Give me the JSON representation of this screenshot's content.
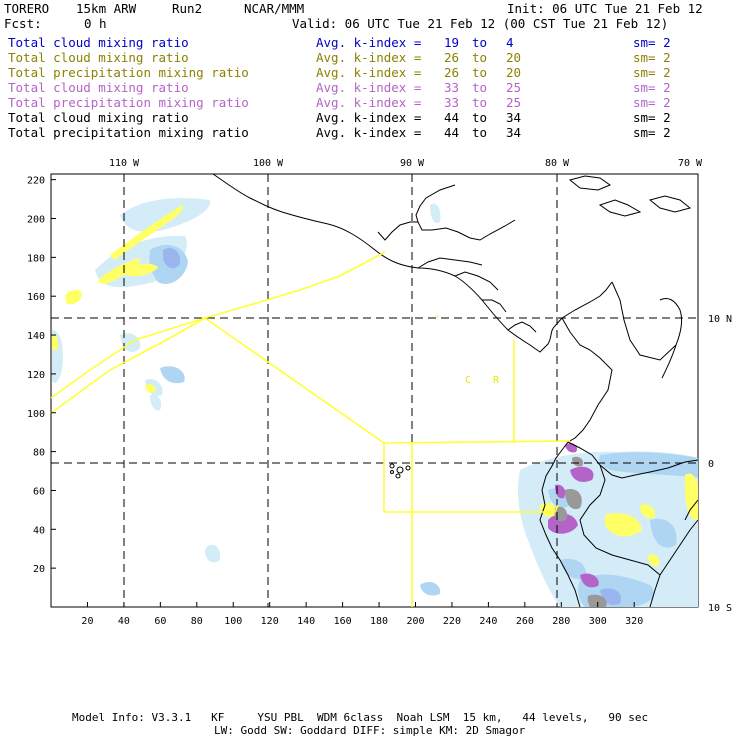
{
  "header": {
    "model": "TORERO",
    "resolution": "15km ARW",
    "run": "Run2",
    "org": "NCAR/MMM",
    "init": "Init: 06 UTC Tue 21 Feb 12",
    "fcst_label": "Fcst:",
    "fcst_value": "0 h",
    "valid": "Valid: 06 UTC Tue 21 Feb 12 (00 CST Tue 21 Feb 12)"
  },
  "legend": [
    {
      "field": "Total cloud mixing ratio",
      "index": "Avg. k-index =",
      "from": "19",
      "to_word": "to",
      "to": "4",
      "sm": "sm= 2",
      "color": "#0000c8"
    },
    {
      "field": "Total cloud mixing ratio",
      "index": "Avg. k-index =",
      "from": "26",
      "to_word": "to",
      "to": "20",
      "sm": "sm= 2",
      "color": "#8c8200"
    },
    {
      "field": "Total precipitation mixing ratio",
      "index": "Avg. k-index =",
      "from": "26",
      "to_word": "to",
      "to": "20",
      "sm": "sm= 2",
      "color": "#8c8200"
    },
    {
      "field": "Total cloud mixing ratio",
      "index": "Avg. k-index =",
      "from": "33",
      "to_word": "to",
      "to": "25",
      "sm": "sm= 2",
      "color": "#b464c8"
    },
    {
      "field": "Total precipitation mixing ratio",
      "index": "Avg. k-index =",
      "from": "33",
      "to_word": "to",
      "to": "25",
      "sm": "sm= 2",
      "color": "#b464c8"
    },
    {
      "field": "Total cloud mixing ratio",
      "index": "Avg. k-index =",
      "from": "44",
      "to_word": "to",
      "to": "34",
      "sm": "sm= 2",
      "color": "#000000"
    },
    {
      "field": "Total precipitation mixing ratio",
      "index": "Avg. k-index =",
      "from": "44",
      "to_word": "to",
      "to": "34",
      "sm": "sm= 2",
      "color": "#000000"
    }
  ],
  "map": {
    "lon_labels": [
      "110 W",
      "100 W",
      "90 W",
      "80 W",
      "70 W"
    ],
    "lat_labels": [
      "10 N",
      "0",
      "10 S"
    ],
    "x_ticks": [
      "20",
      "40",
      "60",
      "80",
      "100",
      "120",
      "140",
      "160",
      "180",
      "200",
      "220",
      "240",
      "260",
      "280",
      "300",
      "320"
    ],
    "y_ticks": [
      "20",
      "40",
      "60",
      "80",
      "100",
      "120",
      "140",
      "160",
      "180",
      "200",
      "220"
    ],
    "region_label_c": "C",
    "region_label_r": "R",
    "colors": {
      "boundary": "#ffff33",
      "cloud_light": "#d4ecf8",
      "cloud_mid": "#aed6f2",
      "cloud_blue": "#9bb6ee",
      "precip_yellow": "#ffff66",
      "precip_purple": "#b464c8",
      "precip_gray": "#999999"
    }
  },
  "footer": {
    "line1": "Model Info: V3.3.1   KF     YSU PBL  WDM 6class  Noah LSM  15 km,   44 levels,   90 sec",
    "line2": "LW: Godd SW: Goddard DIFF: simple KM: 2D Smagor"
  }
}
